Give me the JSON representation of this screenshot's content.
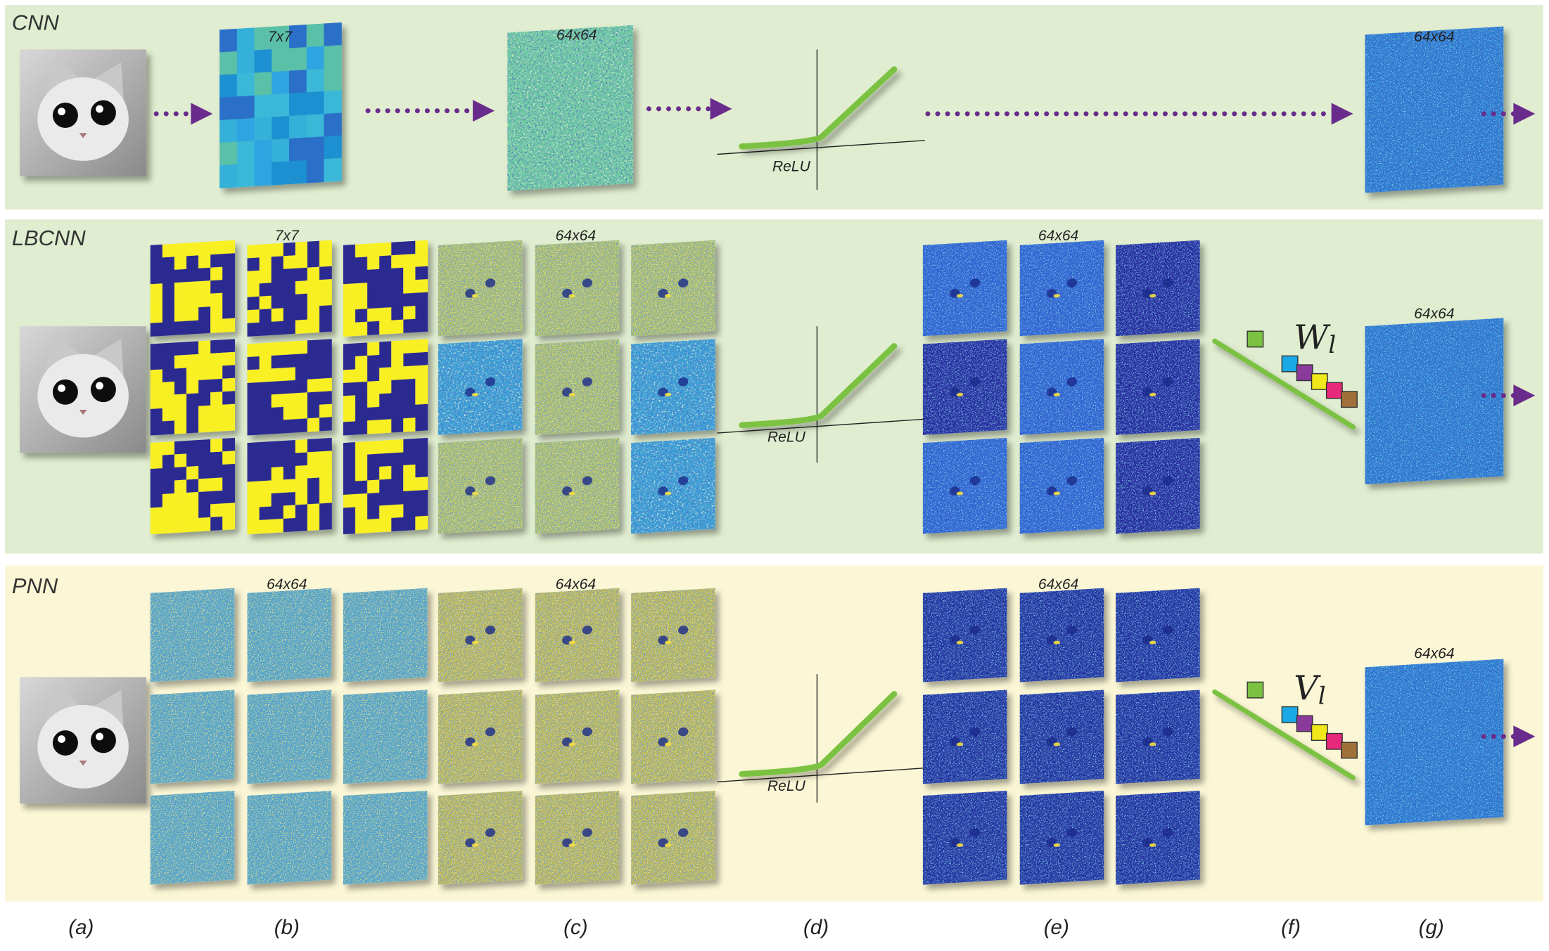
{
  "panels": [
    {
      "title": "CNN",
      "labels": [
        "7x7",
        "64x64",
        "ReLU",
        "64x64"
      ]
    },
    {
      "title": "LBCNN",
      "labels": [
        "7x7",
        "64x64",
        "ReLU",
        "64x64",
        "64x64"
      ],
      "weights": {
        "symbol": "W",
        "subscript": "l"
      }
    },
    {
      "title": "PNN",
      "labels": [
        "64x64",
        "64x64",
        "ReLU",
        "64x64",
        "64x64"
      ],
      "weights": {
        "symbol": "V",
        "subscript": "l"
      }
    }
  ],
  "columns": [
    "(a)",
    "(b)",
    "(c)",
    "(d)",
    "(e)",
    "(f)",
    "(g)"
  ]
}
